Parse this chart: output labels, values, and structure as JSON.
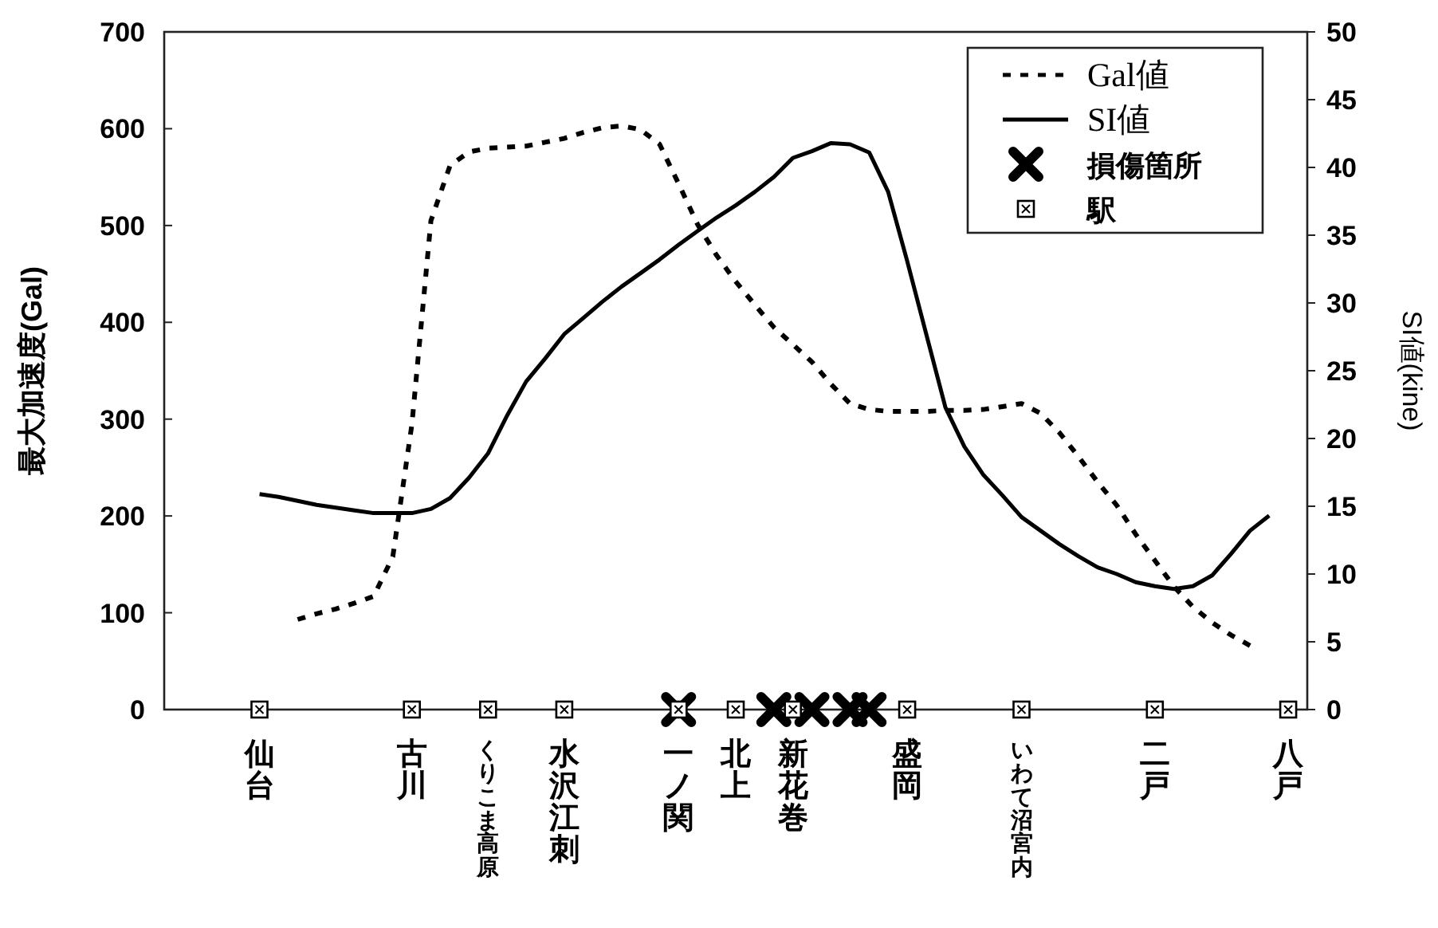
{
  "chart_data": {
    "type": "line",
    "ylabel": "最大加速度(Gal)",
    "y2label": "SI値(kine)",
    "ylim": [
      0,
      700
    ],
    "yticks": [
      0,
      100,
      200,
      300,
      400,
      500,
      600,
      700
    ],
    "y2lim": [
      0,
      50
    ],
    "y2ticks": [
      0,
      5,
      10,
      15,
      20,
      25,
      30,
      35,
      40,
      45,
      50
    ],
    "categories": [
      null,
      null,
      null,
      null,
      null,
      "仙台",
      null,
      null,
      null,
      null,
      null,
      null,
      null,
      "古川",
      null,
      null,
      null,
      "くりこま高原",
      null,
      null,
      null,
      "水沢江刺",
      null,
      null,
      null,
      null,
      null,
      "一ノ関",
      null,
      null,
      "北上",
      null,
      null,
      "新花巻",
      null,
      null,
      null,
      null,
      null,
      "盛岡",
      null,
      null,
      null,
      null,
      null,
      "いわて沼宮内",
      null,
      null,
      null,
      null,
      null,
      null,
      "二戸",
      null,
      null,
      null,
      null,
      null,
      null,
      "八戸",
      null
    ],
    "legend": "top right",
    "series": [
      {
        "name": "Gal値",
        "color": "#000000",
        "line_style": "dashed",
        "marker": "none",
        "values": [
          null,
          null,
          null,
          null,
          null,
          null,
          null,
          93,
          99,
          104,
          110,
          117,
          158,
          295,
          505,
          562,
          576,
          580,
          581,
          582,
          586,
          590,
          596,
          601,
          603,
          599,
          584,
          543,
          501,
          469,
          442,
          418,
          395,
          377,
          359,
          336,
          316,
          310,
          308,
          308,
          308,
          309,
          309,
          310,
          313,
          316,
          306,
          286,
          261,
          235,
          211,
          181,
          154,
          127,
          106,
          90,
          77,
          66,
          null,
          null,
          null
        ]
      },
      {
        "name": "SI値",
        "color": "#000000",
        "line_style": "solid",
        "marker": "none",
        "axis": "y2",
        "values": [
          null,
          null,
          null,
          null,
          null,
          15.9,
          15.7,
          15.4,
          15.1,
          14.9,
          14.7,
          14.5,
          14.5,
          14.5,
          14.8,
          15.6,
          17.1,
          18.9,
          21.7,
          24.2,
          25.9,
          27.7,
          28.9,
          30.1,
          31.2,
          32.2,
          33.2,
          34.3,
          35.3,
          36.3,
          37.2,
          38.2,
          39.3,
          40.7,
          41.2,
          41.8,
          41.7,
          41.1,
          38.2,
          33.1,
          27.7,
          22.3,
          19.4,
          17.3,
          15.8,
          14.2,
          13.2,
          12.2,
          11.3,
          10.5,
          10.0,
          9.4,
          9.1,
          8.9,
          9.1,
          9.9,
          11.5,
          13.2,
          14.3,
          null,
          null
        ]
      },
      {
        "name": "損傷箇所",
        "type": "scatter",
        "color": "#000000",
        "marker": "cross",
        "values": [
          null,
          null,
          null,
          null,
          null,
          null,
          null,
          null,
          null,
          null,
          null,
          null,
          null,
          null,
          null,
          null,
          null,
          null,
          null,
          null,
          null,
          null,
          null,
          null,
          null,
          null,
          null,
          0,
          null,
          null,
          null,
          null,
          0,
          null,
          0,
          null,
          0,
          0,
          null,
          null,
          null,
          null,
          null,
          null,
          null,
          null,
          null,
          null,
          null,
          null,
          null,
          null,
          null,
          null,
          null,
          null,
          null,
          null,
          null,
          null,
          null
        ]
      },
      {
        "name": "駅",
        "type": "scatter",
        "color": "#000000",
        "marker": "square",
        "values": [
          null,
          null,
          null,
          null,
          null,
          0,
          null,
          null,
          null,
          null,
          null,
          null,
          null,
          0,
          null,
          null,
          null,
          0,
          null,
          null,
          null,
          0,
          null,
          null,
          null,
          null,
          null,
          0,
          null,
          null,
          0,
          null,
          null,
          0,
          null,
          null,
          null,
          null,
          null,
          0,
          null,
          null,
          null,
          null,
          null,
          0,
          null,
          null,
          null,
          null,
          null,
          null,
          0,
          null,
          null,
          null,
          null,
          null,
          null,
          0,
          null
        ]
      }
    ]
  }
}
